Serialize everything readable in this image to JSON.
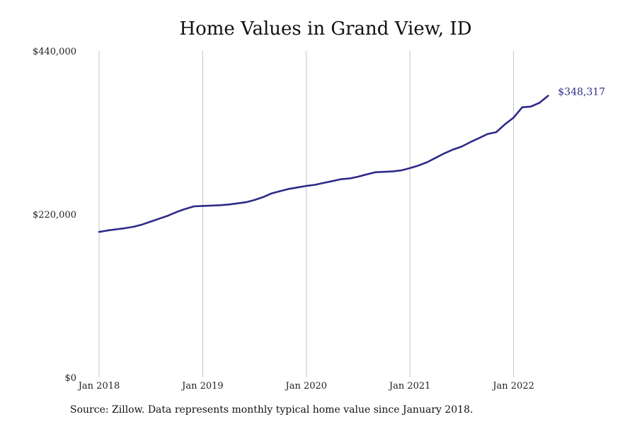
{
  "chart_data": {
    "type": "line",
    "title": "Home Values in Grand View, ID",
    "subtitle": "",
    "xlabel": "",
    "ylabel": "",
    "ylim": [
      0,
      440000
    ],
    "y_ticks": [
      0,
      220000,
      440000
    ],
    "y_tick_labels": [
      "$0",
      "$220,000",
      "$440,000"
    ],
    "x_range": [
      "2018-01",
      "2022-12"
    ],
    "x_ticks": [
      "2018-01",
      "2019-01",
      "2020-01",
      "2021-01",
      "2022-01"
    ],
    "x_tick_labels": [
      "Jan 2018",
      "Jan 2019",
      "Jan 2020",
      "Jan 2021",
      "Jan 2022"
    ],
    "grid": "vertical",
    "legend": "none",
    "series": [
      {
        "color": "#2f2a87",
        "end_label": "$348,317",
        "x": [
          "2018-01",
          "2018-02",
          "2018-03",
          "2018-04",
          "2018-05",
          "2018-06",
          "2018-07",
          "2018-08",
          "2018-09",
          "2018-10",
          "2018-11",
          "2018-12",
          "2019-01",
          "2019-02",
          "2019-03",
          "2019-04",
          "2019-05",
          "2019-06",
          "2019-07",
          "2019-08",
          "2019-09",
          "2019-10",
          "2019-11",
          "2019-12",
          "2020-01",
          "2020-02",
          "2020-03",
          "2020-04",
          "2020-05",
          "2020-06",
          "2020-07",
          "2020-08",
          "2020-09",
          "2020-10",
          "2020-11",
          "2020-12",
          "2021-01",
          "2021-02",
          "2021-03",
          "2021-04",
          "2021-05",
          "2021-06",
          "2021-07",
          "2021-08",
          "2021-09",
          "2021-10",
          "2021-11",
          "2021-12",
          "2022-01",
          "2022-02",
          "2022-03",
          "2022-04",
          "2022-05"
        ],
        "values": [
          196000,
          198000,
          199500,
          201000,
          203000,
          206000,
          210000,
          214000,
          218000,
          223000,
          227000,
          230500,
          231000,
          231500,
          232000,
          233000,
          234500,
          236000,
          239000,
          243000,
          248000,
          251000,
          254000,
          256000,
          258000,
          259500,
          262000,
          264500,
          267000,
          268000,
          270500,
          273500,
          276500,
          277000,
          277500,
          279000,
          282000,
          285500,
          290000,
          296000,
          302000,
          307000,
          311000,
          317000,
          322500,
          328000,
          330500,
          341000,
          350000,
          364000,
          365000,
          370000,
          379500
        ]
      }
    ]
  },
  "source_text": "Source: Zillow. Data represents monthly typical home value since January 2018."
}
